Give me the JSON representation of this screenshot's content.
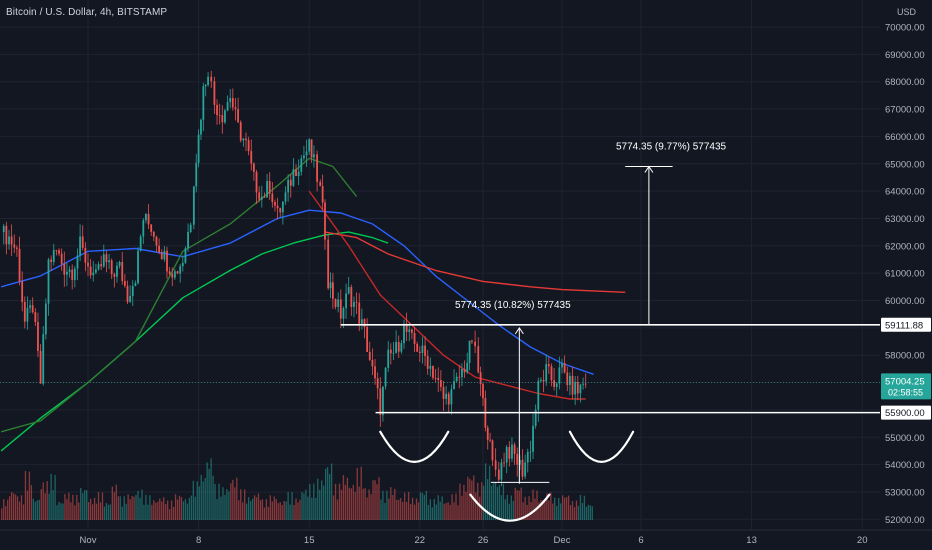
{
  "chart_data": {
    "type": "candlestick",
    "title": "Bitcoin / U.S. Dollar, 4h, BITSTAMP",
    "currency": "USD",
    "y_ticks": [
      52000,
      53000,
      54000,
      55000,
      56000,
      57000,
      58000,
      59000,
      60000,
      61000,
      62000,
      63000,
      64000,
      65000,
      66000,
      67000,
      68000,
      69000,
      70000
    ],
    "y_tick_labels": [
      "52000.00",
      "53000.00",
      "54000.00",
      "55000.00",
      "56000.00",
      "57000.00",
      "58000.00",
      "59000.00",
      "60000.00",
      "61000.00",
      "62000.00",
      "63000.00",
      "64000.00",
      "65000.00",
      "66000.00",
      "67000.00",
      "68000.00",
      "69000.00",
      "70000.00"
    ],
    "ylim": [
      51700,
      70700
    ],
    "x_ticks": [
      {
        "label": "Nov",
        "day": 1
      },
      {
        "label": "8",
        "day": 8
      },
      {
        "label": "15",
        "day": 15
      },
      {
        "label": "22",
        "day": 22
      },
      {
        "label": "26",
        "day": 26
      },
      {
        "label": "Dec",
        "day": 31
      },
      {
        "label": "6",
        "day": 36
      },
      {
        "label": "13",
        "day": 43
      },
      {
        "label": "20",
        "day": 50
      }
    ],
    "price_path": [
      [
        -4.5,
        62500
      ],
      [
        -4,
        62300
      ],
      [
        -3.5,
        61800
      ],
      [
        -3,
        59200
      ],
      [
        -2.5,
        59800
      ],
      [
        -2,
        57000
      ],
      [
        -1.5,
        61400
      ],
      [
        -1,
        61800
      ],
      [
        -0.5,
        61200
      ],
      [
        0,
        61100
      ],
      [
        0.5,
        62000
      ],
      [
        1,
        61300
      ],
      [
        1.5,
        60800
      ],
      [
        2,
        61500
      ],
      [
        2.5,
        61000
      ],
      [
        3,
        61200
      ],
      [
        3.5,
        60200
      ],
      [
        4,
        60900
      ],
      [
        4.5,
        63000
      ],
      [
        5,
        62700
      ],
      [
        5.5,
        62000
      ],
      [
        6,
        61400
      ],
      [
        6.5,
        61000
      ],
      [
        7,
        61500
      ],
      [
        7.5,
        63000
      ],
      [
        7.7,
        64500
      ],
      [
        8,
        66000
      ],
      [
        8.3,
        67700
      ],
      [
        8.6,
        68500
      ],
      [
        9,
        67200
      ],
      [
        9.5,
        66800
      ],
      [
        10,
        67500
      ],
      [
        10.5,
        66300
      ],
      [
        11,
        65700
      ],
      [
        11.5,
        64400
      ],
      [
        12,
        63800
      ],
      [
        12.5,
        64200
      ],
      [
        13,
        63100
      ],
      [
        13.5,
        63800
      ],
      [
        14,
        64700
      ],
      [
        14.5,
        65200
      ],
      [
        15,
        65600
      ],
      [
        15.3,
        65000
      ],
      [
        15.7,
        64000
      ],
      [
        16,
        62500
      ],
      [
        16.2,
        60800
      ],
      [
        16.5,
        60200
      ],
      [
        17,
        59500
      ],
      [
        17.5,
        60300
      ],
      [
        18,
        59700
      ],
      [
        18.5,
        58800
      ],
      [
        19,
        57400
      ],
      [
        19.5,
        56100
      ],
      [
        20,
        57900
      ],
      [
        20.5,
        58200
      ],
      [
        21,
        59000
      ],
      [
        21.5,
        58500
      ],
      [
        22,
        58200
      ],
      [
        22.5,
        57800
      ],
      [
        23,
        57200
      ],
      [
        23.5,
        56400
      ],
      [
        24,
        56600
      ],
      [
        24.5,
        57200
      ],
      [
        25,
        57800
      ],
      [
        25.3,
        58600
      ],
      [
        25.7,
        57400
      ],
      [
        26,
        56200
      ],
      [
        26.3,
        55200
      ],
      [
        26.6,
        54000
      ],
      [
        27,
        53700
      ],
      [
        27.5,
        54600
      ],
      [
        28,
        54300
      ],
      [
        28.5,
        53800
      ],
      [
        29,
        54700
      ],
      [
        29.5,
        56800
      ],
      [
        30,
        57400
      ],
      [
        30.5,
        57000
      ],
      [
        31,
        57500
      ],
      [
        31.5,
        56900
      ],
      [
        32,
        56700
      ],
      [
        32.5,
        57100
      ]
    ],
    "ma_series": [
      {
        "color": "#2962ff",
        "points": [
          [
            -4.5,
            60500
          ],
          [
            -2,
            60900
          ],
          [
            1,
            61800
          ],
          [
            4,
            61900
          ],
          [
            7,
            61600
          ],
          [
            10,
            62100
          ],
          [
            13,
            63000
          ],
          [
            15,
            63300
          ],
          [
            17,
            63200
          ],
          [
            19,
            62800
          ],
          [
            21,
            62000
          ],
          [
            23,
            60900
          ],
          [
            25,
            60000
          ],
          [
            27,
            59100
          ],
          [
            29,
            58300
          ],
          [
            31,
            57700
          ],
          [
            33,
            57300
          ]
        ]
      },
      {
        "color": "#00c853",
        "points": [
          [
            -4.5,
            54500
          ],
          [
            -2,
            55700
          ],
          [
            1,
            57000
          ],
          [
            4,
            58500
          ],
          [
            7,
            60100
          ],
          [
            10,
            61100
          ],
          [
            12,
            61700
          ],
          [
            14,
            62100
          ],
          [
            16,
            62400
          ],
          [
            17.5,
            62500
          ],
          [
            19,
            62300
          ],
          [
            20,
            62100
          ]
        ]
      },
      {
        "color": "#2e7d32",
        "points": [
          [
            -4.5,
            55200
          ],
          [
            -2,
            55600
          ],
          [
            1,
            57000
          ],
          [
            4,
            58500
          ],
          [
            7,
            61800
          ],
          [
            10,
            62800
          ],
          [
            13,
            64200
          ],
          [
            15,
            65200
          ],
          [
            16.5,
            64900
          ],
          [
            18,
            63800
          ]
        ]
      },
      {
        "color": "#e53935",
        "points": [
          [
            16,
            62500
          ],
          [
            18,
            62300
          ],
          [
            20,
            61700
          ],
          [
            23,
            61100
          ],
          [
            26,
            60700
          ],
          [
            29,
            60500
          ],
          [
            31,
            60400
          ],
          [
            33,
            60350
          ],
          [
            35,
            60300
          ]
        ]
      },
      {
        "color": "#c62828",
        "points": [
          [
            15,
            64000
          ],
          [
            16,
            63200
          ],
          [
            17.5,
            62000
          ],
          [
            19.5,
            60200
          ],
          [
            21.5,
            59100
          ],
          [
            23.5,
            58000
          ],
          [
            25.5,
            57200
          ],
          [
            27.5,
            56900
          ],
          [
            29.5,
            56600
          ],
          [
            31.5,
            56400
          ],
          [
            32.5,
            56400
          ]
        ]
      }
    ],
    "volume_range": [
      0,
      8
    ],
    "volume": [
      [
        -4.5,
        1.5
      ],
      [
        -4,
        2.2
      ],
      [
        -3.5,
        1.8
      ],
      [
        -3,
        3.5
      ],
      [
        -2.5,
        1.6
      ],
      [
        -2,
        2.8
      ],
      [
        -1.5,
        3.3
      ],
      [
        -1,
        1.4
      ],
      [
        -0.5,
        2.0
      ],
      [
        0,
        1.8
      ],
      [
        0.5,
        2.4
      ],
      [
        1,
        1.6
      ],
      [
        1.5,
        2.0
      ],
      [
        2,
        1.3
      ],
      [
        2.5,
        2.6
      ],
      [
        3,
        1.7
      ],
      [
        3.5,
        1.9
      ],
      [
        4,
        2.2
      ],
      [
        4.5,
        1.8
      ],
      [
        5,
        1.5
      ],
      [
        5.5,
        1.7
      ],
      [
        6,
        1.4
      ],
      [
        6.5,
        1.9
      ],
      [
        7,
        1.6
      ],
      [
        7.5,
        2.8
      ],
      [
        8,
        3.4
      ],
      [
        8.5,
        4.6
      ],
      [
        9,
        2.6
      ],
      [
        9.5,
        2.4
      ],
      [
        10,
        3.1
      ],
      [
        10.5,
        2.2
      ],
      [
        11,
        1.7
      ],
      [
        11.5,
        2.0
      ],
      [
        12,
        1.5
      ],
      [
        12.5,
        1.8
      ],
      [
        13,
        1.4
      ],
      [
        13.5,
        2.0
      ],
      [
        14,
        1.6
      ],
      [
        14.5,
        2.3
      ],
      [
        15,
        2.6
      ],
      [
        15.5,
        3.0
      ],
      [
        16,
        4.2
      ],
      [
        16.5,
        2.6
      ],
      [
        17,
        3.3
      ],
      [
        17.5,
        2.7
      ],
      [
        18,
        3.8
      ],
      [
        18.5,
        2.3
      ],
      [
        19,
        3.2
      ],
      [
        19.5,
        2.1
      ],
      [
        20,
        2.4
      ],
      [
        20.5,
        1.7
      ],
      [
        21,
        2.0
      ],
      [
        21.5,
        1.6
      ],
      [
        22,
        2.2
      ],
      [
        22.5,
        1.5
      ],
      [
        23,
        1.8
      ],
      [
        23.5,
        1.4
      ],
      [
        24,
        1.9
      ],
      [
        24.5,
        2.6
      ],
      [
        25,
        3.4
      ],
      [
        25.5,
        2.7
      ],
      [
        26,
        4.1
      ],
      [
        26.5,
        3.0
      ],
      [
        27,
        2.6
      ],
      [
        27.5,
        1.8
      ],
      [
        28,
        2.5
      ],
      [
        28.5,
        1.7
      ],
      [
        29,
        2.2
      ],
      [
        29.5,
        1.6
      ],
      [
        30,
        2.0
      ],
      [
        30.5,
        1.6
      ],
      [
        31,
        1.9
      ],
      [
        31.5,
        1.4
      ],
      [
        32,
        1.8
      ],
      [
        32.5,
        1.2
      ]
    ],
    "last_price": {
      "value": 57004.25,
      "label": "57004.25",
      "countdown": "02:58:55"
    },
    "levels": [
      {
        "value": 59111.88,
        "label": "59111.88",
        "from_day": 17
      },
      {
        "value": 55900,
        "label": "55900.00",
        "from_day": 19.2
      }
    ],
    "annotations": [
      {
        "text": "5774.35 (10.82%) 577435",
        "arrow": {
          "day": 28.3,
          "from": 53300,
          "to": 59000
        },
        "tick": {
          "day1": 26.5,
          "day2": 30.2,
          "value": 53350
        }
      },
      {
        "text": "5774.35 (9.77%) 577435",
        "arrow": {
          "day": 36.5,
          "from": 59111.88,
          "to": 64900
        },
        "tick": {
          "day1": 35,
          "day2": 38,
          "value": 64900
        }
      }
    ],
    "arcs": [
      {
        "day1": 19.5,
        "day2": 23.8,
        "top": 55200,
        "bottom": 54100
      },
      {
        "day1": 25.2,
        "day2": 30.2,
        "top": 52900,
        "bottom": 51950
      },
      {
        "day1": 31.5,
        "day2": 35.5,
        "top": 55200,
        "bottom": 54100
      }
    ]
  }
}
